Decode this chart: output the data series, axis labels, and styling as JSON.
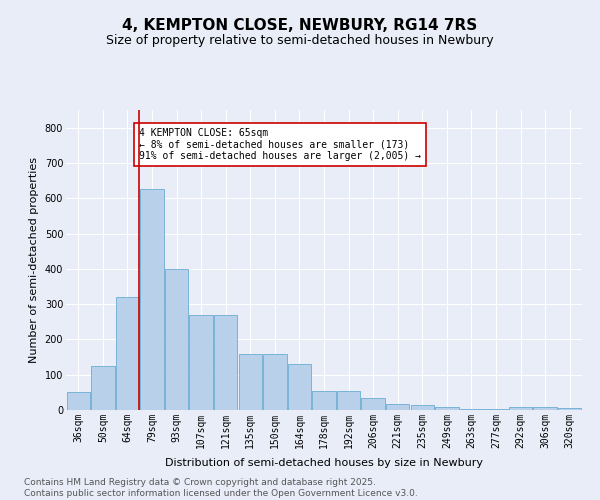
{
  "title": "4, KEMPTON CLOSE, NEWBURY, RG14 7RS",
  "subtitle": "Size of property relative to semi-detached houses in Newbury",
  "xlabel": "Distribution of semi-detached houses by size in Newbury",
  "ylabel": "Number of semi-detached properties",
  "categories": [
    "36sqm",
    "50sqm",
    "64sqm",
    "79sqm",
    "93sqm",
    "107sqm",
    "121sqm",
    "135sqm",
    "150sqm",
    "164sqm",
    "178sqm",
    "192sqm",
    "206sqm",
    "221sqm",
    "235sqm",
    "249sqm",
    "263sqm",
    "277sqm",
    "292sqm",
    "306sqm",
    "320sqm"
  ],
  "values": [
    50,
    125,
    320,
    625,
    400,
    268,
    268,
    158,
    158,
    130,
    53,
    53,
    35,
    18,
    13,
    8,
    3,
    3,
    8,
    8,
    5
  ],
  "bar_color": "#b8d0ea",
  "bar_edge_color": "#6aadd5",
  "vline_color": "#cc0000",
  "vline_pos": 2.5,
  "annotation_text": "4 KEMPTON CLOSE: 65sqm\n← 8% of semi-detached houses are smaller (173)\n91% of semi-detached houses are larger (2,005) →",
  "annotation_box_facecolor": "#ffffff",
  "annotation_box_edgecolor": "#cc0000",
  "ylim": [
    0,
    850
  ],
  "yticks": [
    0,
    100,
    200,
    300,
    400,
    500,
    600,
    700,
    800
  ],
  "footer_text": "Contains HM Land Registry data © Crown copyright and database right 2025.\nContains public sector information licensed under the Open Government Licence v3.0.",
  "bg_color": "#e8edf8",
  "plot_bg_color": "#e8edf8",
  "grid_color": "#ffffff",
  "title_fontsize": 11,
  "subtitle_fontsize": 9,
  "axis_label_fontsize": 8,
  "tick_fontsize": 7,
  "annotation_fontsize": 7,
  "footer_fontsize": 6.5
}
